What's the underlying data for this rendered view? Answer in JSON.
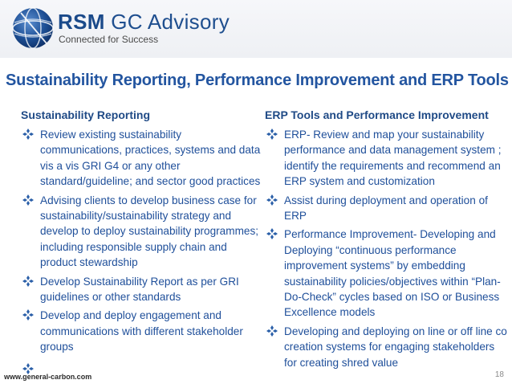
{
  "header": {
    "brand_bold": "RSM",
    "brand_rest": " GC Advisory",
    "tagline": "Connected for Success",
    "logo_icon": "globe-logo-icon"
  },
  "title": "Sustainability Reporting, Performance Improvement and ERP Tools",
  "left": {
    "heading": "Sustainability Reporting",
    "items": [
      "Review existing sustainability communications, practices, systems and data vis a vis GRI G4 or any other standard/guideline; and sector good practices",
      "Advising clients to develop business case for sustainability/sustainability strategy and develop to deploy sustainability programmes; including responsible supply chain and product stewardship",
      "Develop Sustainability Report as per GRI guidelines or other standards",
      "Develop and deploy engagement and communications with different stakeholder groups"
    ]
  },
  "right": {
    "heading": "ERP Tools and Performance Improvement",
    "items": [
      "ERP- Review and map  your sustainability performance and data  management system ; identify the requirements and recommend an ERP system  and customization",
      "Assist during deployment and operation of ERP",
      "Performance Improvement- Developing and Deploying “continuous performance improvement systems” by embedding sustainability policies/objectives within “Plan-Do-Check” cycles based on ISO or Business Excellence models",
      "Developing and deploying on line or off line co creation systems for engaging stakeholders for creating shred value"
    ]
  },
  "footer": {
    "url": "www.general-carbon.com",
    "page": "18"
  },
  "colors": {
    "title": "#2355a0",
    "text": "#1f4f9a",
    "bullet": "#2a5fa8"
  },
  "bullet_icon": "diamond-bullet-icon"
}
